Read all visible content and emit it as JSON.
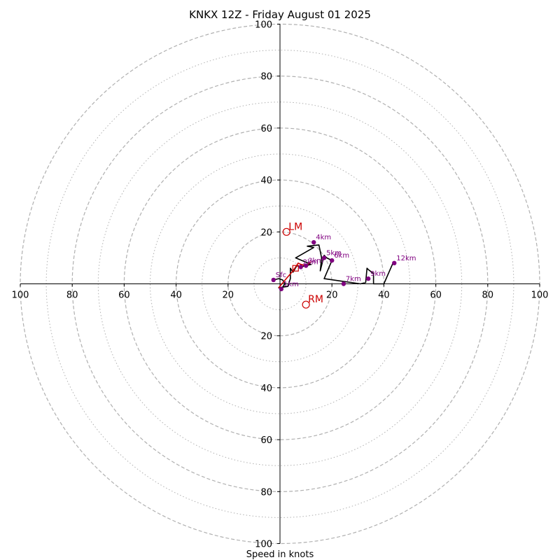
{
  "chart_data": {
    "type": "hodograph",
    "title": "KNKX 12Z - Friday August 01 2025",
    "xlabel": "Speed in knots",
    "xlim": [
      -100,
      100
    ],
    "ylim": [
      -100,
      100
    ],
    "tick_values": [
      20,
      40,
      60,
      80,
      100
    ],
    "x_tick_labels": [
      "100",
      "80",
      "60",
      "40",
      "20",
      "20",
      "40",
      "60",
      "80",
      "100"
    ],
    "y_tick_labels": [
      "100",
      "80",
      "60",
      "40",
      "20",
      "20",
      "40",
      "60",
      "80",
      "100"
    ],
    "rings": {
      "dashed": [
        20,
        40,
        60,
        80,
        100
      ],
      "dotted": [
        10,
        30,
        50,
        70,
        90
      ]
    },
    "colors": {
      "trace": "#000000",
      "low_level": "#cc0000",
      "markers": "#800080",
      "storm_motion": "#cc0000",
      "grid": "#b0b0b0"
    },
    "lowlevel_trace": [
      [
        -0.5,
        -1.5
      ],
      [
        2,
        1.5
      ],
      [
        5,
        5
      ],
      [
        7,
        8
      ],
      [
        8,
        7.5
      ],
      [
        10,
        7
      ],
      [
        12,
        8.5
      ]
    ],
    "trace": [
      [
        -2.5,
        1.5
      ],
      [
        -0.5,
        2
      ],
      [
        1,
        1.5
      ],
      [
        2,
        0
      ],
      [
        1.5,
        -0.5
      ],
      [
        0.5,
        -2
      ],
      [
        0,
        -1.5
      ],
      [
        -0.5,
        -1.5
      ],
      [
        3,
        -1
      ],
      [
        4,
        2
      ],
      [
        4,
        6
      ],
      [
        5,
        4.5
      ],
      [
        6.5,
        7
      ],
      [
        8,
        6.5
      ],
      [
        10,
        7
      ],
      [
        12,
        7.5
      ],
      [
        6,
        10
      ],
      [
        13,
        14
      ],
      [
        10.5,
        14.5
      ],
      [
        15,
        15
      ],
      [
        16,
        10
      ],
      [
        15.5,
        5
      ],
      [
        17,
        11
      ],
      [
        18,
        10
      ],
      [
        20,
        9
      ],
      [
        17,
        2
      ],
      [
        31,
        0
      ],
      [
        33,
        0.5
      ],
      [
        33.5,
        6
      ],
      [
        34,
        5.5
      ],
      [
        36,
        4
      ],
      [
        36,
        0
      ],
      [
        40,
        0
      ],
      [
        43.5,
        8
      ]
    ],
    "height_markers": [
      {
        "label": "Sfc",
        "u": -2.5,
        "v": 1.5
      },
      {
        "label": "1km",
        "u": 0.5,
        "v": -2
      },
      {
        "label": "2km",
        "u": 8,
        "v": 6.5
      },
      {
        "label": "3km",
        "u": 10,
        "v": 7
      },
      {
        "label": "4km",
        "u": 13,
        "v": 16
      },
      {
        "label": "5km",
        "u": 17,
        "v": 10
      },
      {
        "label": "6km",
        "u": 20,
        "v": 9
      },
      {
        "label": "7km",
        "u": 24.5,
        "v": 0
      },
      {
        "label": "9km",
        "u": 34,
        "v": 2
      },
      {
        "label": "12km",
        "u": 44,
        "v": 8
      }
    ],
    "storm_motion": [
      {
        "label": "LM",
        "u": 2.5,
        "v": 20
      },
      {
        "label": "RM",
        "u": 10,
        "v": -8
      }
    ],
    "mean_wind": {
      "u": 6,
      "v": 6
    }
  }
}
